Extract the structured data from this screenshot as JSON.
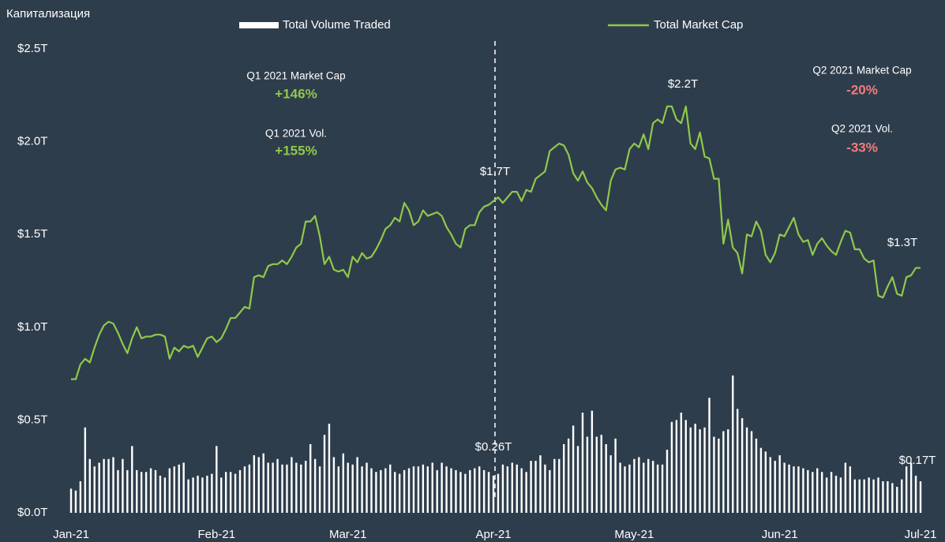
{
  "chart_data": {
    "type": "combo",
    "ylabel": "Капитализация",
    "ylim": [
      0,
      2.5
    ],
    "yticks": [
      {
        "value": 0,
        "label": "$0.0T"
      },
      {
        "value": 0.5,
        "label": "$0.5T"
      },
      {
        "value": 1.0,
        "label": "$1.0T"
      },
      {
        "value": 1.5,
        "label": "$1.5T"
      },
      {
        "value": 2.0,
        "label": "$2.0T"
      },
      {
        "value": 2.5,
        "label": "$2.5T"
      }
    ],
    "grid": false,
    "categories": [
      "Jan-21",
      null,
      null,
      null,
      null,
      null,
      null,
      null,
      null,
      null,
      null,
      null,
      null,
      null,
      null,
      null,
      null,
      null,
      null,
      null,
      null,
      null,
      null,
      null,
      null,
      null,
      null,
      null,
      null,
      null,
      null,
      "Feb-21",
      null,
      null,
      null,
      null,
      null,
      null,
      null,
      null,
      null,
      null,
      null,
      null,
      null,
      null,
      null,
      null,
      null,
      null,
      null,
      null,
      null,
      null,
      null,
      null,
      null,
      null,
      null,
      "Mar-21",
      null,
      null,
      null,
      null,
      null,
      null,
      null,
      null,
      null,
      null,
      null,
      null,
      null,
      null,
      null,
      null,
      null,
      null,
      null,
      null,
      null,
      null,
      null,
      null,
      null,
      null,
      null,
      null,
      null,
      null,
      "Apr-21",
      null,
      null,
      null,
      null,
      null,
      null,
      null,
      null,
      null,
      null,
      null,
      null,
      null,
      null,
      null,
      null,
      null,
      null,
      null,
      null,
      null,
      null,
      null,
      null,
      null,
      null,
      null,
      null,
      null,
      "May-21",
      null,
      null,
      null,
      null,
      null,
      null,
      null,
      null,
      null,
      null,
      null,
      null,
      null,
      null,
      null,
      null,
      null,
      null,
      null,
      null,
      null,
      null,
      null,
      null,
      null,
      null,
      null,
      null,
      null,
      null,
      "Jun-21",
      null,
      null,
      null,
      null,
      null,
      null,
      null,
      null,
      null,
      null,
      null,
      null,
      null,
      null,
      null,
      null,
      null,
      null,
      null,
      null,
      null,
      null,
      null,
      null,
      null,
      null,
      null,
      null,
      null,
      "Jul-21"
    ],
    "series": [
      {
        "name": "Total Volume Traded",
        "type": "bar",
        "color": "#ffffff",
        "values": [
          0.13,
          0.12,
          0.17,
          0.46,
          0.29,
          0.25,
          0.27,
          0.29,
          0.29,
          0.3,
          0.23,
          0.29,
          0.23,
          0.36,
          0.23,
          0.22,
          0.22,
          0.24,
          0.23,
          0.2,
          0.19,
          0.24,
          0.25,
          0.26,
          0.27,
          0.18,
          0.19,
          0.2,
          0.19,
          0.2,
          0.21,
          0.36,
          0.19,
          0.22,
          0.22,
          0.21,
          0.23,
          0.25,
          0.26,
          0.31,
          0.3,
          0.32,
          0.27,
          0.27,
          0.29,
          0.26,
          0.26,
          0.3,
          0.27,
          0.26,
          0.28,
          0.37,
          0.29,
          0.25,
          0.42,
          0.48,
          0.3,
          0.25,
          0.32,
          0.27,
          0.26,
          0.3,
          0.25,
          0.27,
          0.24,
          0.22,
          0.23,
          0.24,
          0.26,
          0.22,
          0.21,
          0.23,
          0.24,
          0.25,
          0.25,
          0.26,
          0.25,
          0.27,
          0.23,
          0.27,
          0.25,
          0.24,
          0.23,
          0.22,
          0.21,
          0.23,
          0.24,
          0.25,
          0.23,
          0.22,
          0.2,
          0.21,
          0.26,
          0.25,
          0.27,
          0.26,
          0.24,
          0.22,
          0.28,
          0.28,
          0.31,
          0.26,
          0.23,
          0.29,
          0.29,
          0.37,
          0.4,
          0.47,
          0.36,
          0.54,
          0.41,
          0.55,
          0.41,
          0.42,
          0.37,
          0.31,
          0.4,
          0.27,
          0.25,
          0.26,
          0.29,
          0.3,
          0.27,
          0.29,
          0.28,
          0.26,
          0.26,
          0.34,
          0.49,
          0.5,
          0.54,
          0.5,
          0.46,
          0.48,
          0.45,
          0.46,
          0.62,
          0.41,
          0.4,
          0.44,
          0.45,
          0.74,
          0.56,
          0.51,
          0.46,
          0.44,
          0.4,
          0.35,
          0.33,
          0.3,
          0.28,
          0.31,
          0.27,
          0.26,
          0.25,
          0.25,
          0.24,
          0.23,
          0.22,
          0.24,
          0.22,
          0.19,
          0.22,
          0.2,
          0.19,
          0.27,
          0.25,
          0.18,
          0.18,
          0.18,
          0.19,
          0.18,
          0.19,
          0.17,
          0.17,
          0.16,
          0.14,
          0.18,
          0.25,
          0.27,
          0.2,
          0.17
        ]
      },
      {
        "name": "Total Market Cap",
        "type": "line",
        "color": "#8fc94a",
        "values": [
          0.72,
          0.72,
          0.8,
          0.83,
          0.81,
          0.89,
          0.96,
          1.01,
          1.03,
          1.02,
          0.97,
          0.91,
          0.86,
          0.94,
          1.0,
          0.94,
          0.95,
          0.95,
          0.96,
          0.96,
          0.95,
          0.83,
          0.89,
          0.87,
          0.9,
          0.89,
          0.9,
          0.84,
          0.89,
          0.94,
          0.95,
          0.92,
          0.94,
          0.99,
          1.05,
          1.05,
          1.08,
          1.11,
          1.1,
          1.27,
          1.28,
          1.27,
          1.33,
          1.34,
          1.34,
          1.36,
          1.34,
          1.38,
          1.43,
          1.45,
          1.57,
          1.57,
          1.6,
          1.49,
          1.34,
          1.38,
          1.31,
          1.3,
          1.31,
          1.27,
          1.38,
          1.35,
          1.4,
          1.37,
          1.38,
          1.42,
          1.47,
          1.53,
          1.55,
          1.59,
          1.57,
          1.67,
          1.63,
          1.55,
          1.57,
          1.63,
          1.6,
          1.61,
          1.62,
          1.6,
          1.54,
          1.5,
          1.45,
          1.43,
          1.53,
          1.55,
          1.55,
          1.62,
          1.65,
          1.66,
          1.68,
          1.7,
          1.67,
          1.7,
          1.73,
          1.73,
          1.68,
          1.74,
          1.73,
          1.8,
          1.82,
          1.84,
          1.95,
          1.97,
          1.99,
          1.98,
          1.93,
          1.83,
          1.79,
          1.84,
          1.78,
          1.75,
          1.7,
          1.66,
          1.63,
          1.79,
          1.85,
          1.86,
          1.85,
          1.96,
          1.99,
          1.97,
          2.04,
          1.96,
          2.1,
          2.12,
          2.1,
          2.19,
          2.19,
          2.12,
          2.1,
          2.19,
          1.99,
          1.96,
          2.05,
          1.92,
          1.91,
          1.8,
          1.8,
          1.45,
          1.58,
          1.43,
          1.4,
          1.29,
          1.5,
          1.49,
          1.57,
          1.52,
          1.39,
          1.35,
          1.4,
          1.5,
          1.49,
          1.54,
          1.59,
          1.5,
          1.46,
          1.47,
          1.39,
          1.45,
          1.48,
          1.44,
          1.41,
          1.39,
          1.46,
          1.52,
          1.51,
          1.42,
          1.42,
          1.37,
          1.35,
          1.36,
          1.17,
          1.16,
          1.22,
          1.27,
          1.18,
          1.17,
          1.27,
          1.28,
          1.32,
          1.32
        ]
      }
    ],
    "annotations": [
      "$1.7T",
      "$0.26T",
      "$2.2T",
      "$1.3T",
      "$0.17T",
      "Q1 2021 Market Cap",
      "+146%",
      "Q1 2021 Vol.",
      "+155%",
      "Q2 2021 Market Cap",
      "-20%",
      "Q2 2021 Vol.",
      "-33%"
    ]
  }
}
